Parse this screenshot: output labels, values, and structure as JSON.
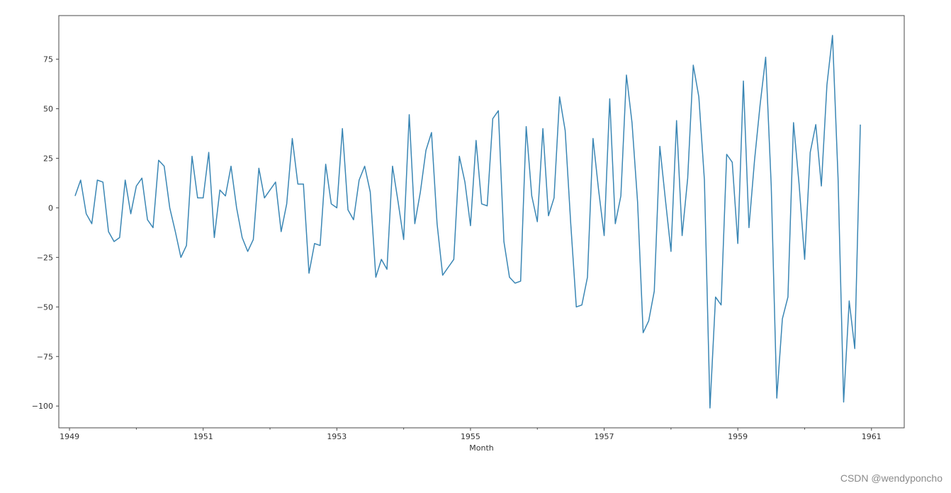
{
  "chart_data": {
    "type": "line",
    "title": "",
    "xlabel": "Month",
    "ylabel": "",
    "x_unit": "year",
    "xlim": [
      1948.84,
      1961.49
    ],
    "ylim": [
      -111,
      97
    ],
    "xticks": [
      1949,
      1951,
      1953,
      1955,
      1957,
      1959,
      1961
    ],
    "xtick_labels": [
      "1949",
      "1951",
      "1953",
      "1955",
      "1957",
      "1959",
      "1961"
    ],
    "yticks": [
      75,
      50,
      25,
      0,
      -25,
      -50,
      -75,
      -100
    ],
    "ytick_labels": [
      "75",
      "50",
      "25",
      "0",
      "−25",
      "−50",
      "−75",
      "−100"
    ],
    "grid": false,
    "legend": false,
    "series": [
      {
        "color": "#3a86b4",
        "x_start": "1949-02",
        "frequency": "monthly",
        "values": [
          6,
          14,
          -3,
          -8,
          14,
          13,
          -12,
          -17,
          -15,
          14,
          -3,
          11,
          15,
          -6,
          -10,
          24,
          21,
          0,
          -12,
          -25,
          -19,
          26,
          5,
          5,
          28,
          -15,
          9,
          6,
          21,
          0,
          -15,
          -22,
          -16,
          20,
          5,
          9,
          13,
          -12,
          2,
          35,
          12,
          12,
          -33,
          -18,
          -19,
          22,
          2,
          0,
          40,
          -1,
          -6,
          14,
          21,
          8,
          -35,
          -26,
          -31,
          21,
          3,
          -16,
          47,
          -8,
          8,
          29,
          38,
          -8,
          -34,
          -30,
          -26,
          26,
          13,
          -9,
          34,
          2,
          1,
          45,
          49,
          -17,
          -35,
          -38,
          -37,
          41,
          6,
          -7,
          40,
          -4,
          5,
          56,
          39,
          -8,
          -50,
          -49,
          -35,
          35,
          9,
          -14,
          55,
          -8,
          6,
          67,
          43,
          3,
          -63,
          -57,
          -42,
          31,
          4,
          -22,
          44,
          -14,
          15,
          72,
          56,
          14,
          -101,
          -45,
          -49,
          27,
          23,
          -18,
          64,
          -10,
          24,
          52,
          76,
          11,
          -96,
          -56,
          -45,
          43,
          12,
          -26,
          28,
          42,
          11,
          62,
          87,
          15,
          -98,
          -47,
          -71,
          42
        ]
      }
    ]
  },
  "watermark": {
    "text": "CSDN @wendyponcho"
  }
}
